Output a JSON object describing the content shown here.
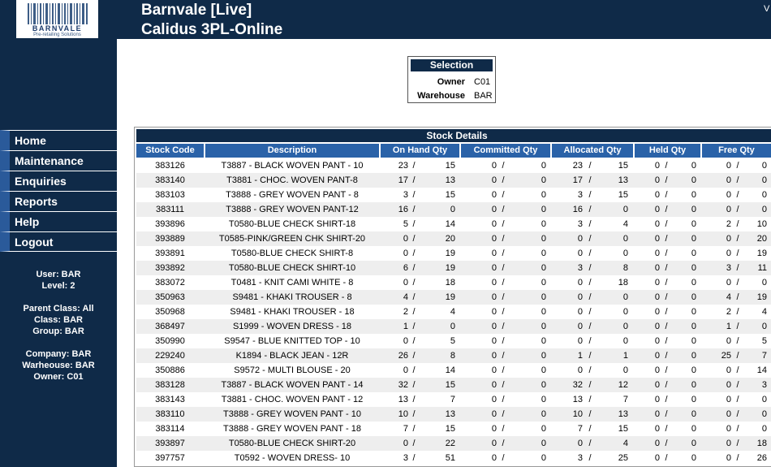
{
  "app": {
    "title_line1": "Barnvale [Live]",
    "title_line2": "Calidus 3PL-Online",
    "corner_text": "V",
    "logo_text": "BARNVALE",
    "logo_tagline": "Pre-retailing Solutions"
  },
  "nav": {
    "items": [
      "Home",
      "Maintenance",
      "Enquiries",
      "Reports",
      "Help",
      "Logout"
    ]
  },
  "user_info": {
    "user": "User: BAR",
    "level": "Level: 2",
    "parent_class": "Parent Class: All",
    "class": "Class: BAR",
    "group": "Group: BAR",
    "company": "Company: BAR",
    "warehouse": "Warheouse: BAR",
    "owner": "Owner: C01"
  },
  "selection": {
    "title": "Selection",
    "owner_label": "Owner",
    "owner_value": "C01",
    "warehouse_label": "Warehouse",
    "warehouse_value": "BAR"
  },
  "stock": {
    "title": "Stock Details",
    "columns": [
      "Stock Code",
      "Description",
      "On Hand Qty",
      "Committed Qty",
      "Allocated Qty",
      "Held Qty",
      "Free Qty"
    ],
    "rows": [
      {
        "code": "383126",
        "desc": "T3887 - BLACK WOVEN PANT - 10",
        "onhand": [
          "23",
          "15"
        ],
        "committed": [
          "0",
          "0"
        ],
        "allocated": [
          "23",
          "15"
        ],
        "held": [
          "0",
          "0"
        ],
        "free": [
          "0",
          "0"
        ]
      },
      {
        "code": "383140",
        "desc": "T3881 - CHOC. WOVEN PANT-8",
        "onhand": [
          "17",
          "13"
        ],
        "committed": [
          "0",
          "0"
        ],
        "allocated": [
          "17",
          "13"
        ],
        "held": [
          "0",
          "0"
        ],
        "free": [
          "0",
          "0"
        ]
      },
      {
        "code": "383103",
        "desc": "T3888 - GREY WOVEN PANT - 8",
        "onhand": [
          "3",
          "15"
        ],
        "committed": [
          "0",
          "0"
        ],
        "allocated": [
          "3",
          "15"
        ],
        "held": [
          "0",
          "0"
        ],
        "free": [
          "0",
          "0"
        ]
      },
      {
        "code": "383111",
        "desc": "T3888 - GREY WOVEN PANT-12",
        "onhand": [
          "16",
          "0"
        ],
        "committed": [
          "0",
          "0"
        ],
        "allocated": [
          "16",
          "0"
        ],
        "held": [
          "0",
          "0"
        ],
        "free": [
          "0",
          "0"
        ]
      },
      {
        "code": "393896",
        "desc": "T0580-BLUE CHECK SHIRT-18",
        "onhand": [
          "5",
          "14"
        ],
        "committed": [
          "0",
          "0"
        ],
        "allocated": [
          "3",
          "4"
        ],
        "held": [
          "0",
          "0"
        ],
        "free": [
          "2",
          "10"
        ]
      },
      {
        "code": "393889",
        "desc": "T0585-PINK/GREEN CHK SHIRT-20",
        "onhand": [
          "0",
          "20"
        ],
        "committed": [
          "0",
          "0"
        ],
        "allocated": [
          "0",
          "0"
        ],
        "held": [
          "0",
          "0"
        ],
        "free": [
          "0",
          "20"
        ]
      },
      {
        "code": "393891",
        "desc": "T0580-BLUE CHECK SHIRT-8",
        "onhand": [
          "0",
          "19"
        ],
        "committed": [
          "0",
          "0"
        ],
        "allocated": [
          "0",
          "0"
        ],
        "held": [
          "0",
          "0"
        ],
        "free": [
          "0",
          "19"
        ]
      },
      {
        "code": "393892",
        "desc": "T0580-BLUE CHECK SHIRT-10",
        "onhand": [
          "6",
          "19"
        ],
        "committed": [
          "0",
          "0"
        ],
        "allocated": [
          "3",
          "8"
        ],
        "held": [
          "0",
          "0"
        ],
        "free": [
          "3",
          "11"
        ]
      },
      {
        "code": "383072",
        "desc": "T0481 - KNIT CAMI WHITE - 8",
        "onhand": [
          "0",
          "18"
        ],
        "committed": [
          "0",
          "0"
        ],
        "allocated": [
          "0",
          "18"
        ],
        "held": [
          "0",
          "0"
        ],
        "free": [
          "0",
          "0"
        ]
      },
      {
        "code": "350963",
        "desc": "S9481 - KHAKI TROUSER - 8",
        "onhand": [
          "4",
          "19"
        ],
        "committed": [
          "0",
          "0"
        ],
        "allocated": [
          "0",
          "0"
        ],
        "held": [
          "0",
          "0"
        ],
        "free": [
          "4",
          "19"
        ]
      },
      {
        "code": "350968",
        "desc": "S9481 - KHAKI TROUSER - 18",
        "onhand": [
          "2",
          "4"
        ],
        "committed": [
          "0",
          "0"
        ],
        "allocated": [
          "0",
          "0"
        ],
        "held": [
          "0",
          "0"
        ],
        "free": [
          "2",
          "4"
        ]
      },
      {
        "code": "368497",
        "desc": "S1999 - WOVEN DRESS - 18",
        "onhand": [
          "1",
          "0"
        ],
        "committed": [
          "0",
          "0"
        ],
        "allocated": [
          "0",
          "0"
        ],
        "held": [
          "0",
          "0"
        ],
        "free": [
          "1",
          "0"
        ]
      },
      {
        "code": "350990",
        "desc": "S9547 - BLUE KNITTED TOP - 10",
        "onhand": [
          "0",
          "5"
        ],
        "committed": [
          "0",
          "0"
        ],
        "allocated": [
          "0",
          "0"
        ],
        "held": [
          "0",
          "0"
        ],
        "free": [
          "0",
          "5"
        ]
      },
      {
        "code": "229240",
        "desc": "K1894 - BLACK JEAN - 12R",
        "onhand": [
          "26",
          "8"
        ],
        "committed": [
          "0",
          "0"
        ],
        "allocated": [
          "1",
          "1"
        ],
        "held": [
          "0",
          "0"
        ],
        "free": [
          "25",
          "7"
        ]
      },
      {
        "code": "350886",
        "desc": "S9572 - MULTI BLOUSE - 20",
        "onhand": [
          "0",
          "14"
        ],
        "committed": [
          "0",
          "0"
        ],
        "allocated": [
          "0",
          "0"
        ],
        "held": [
          "0",
          "0"
        ],
        "free": [
          "0",
          "14"
        ]
      },
      {
        "code": "383128",
        "desc": "T3887 - BLACK WOVEN PANT - 14",
        "onhand": [
          "32",
          "15"
        ],
        "committed": [
          "0",
          "0"
        ],
        "allocated": [
          "32",
          "12"
        ],
        "held": [
          "0",
          "0"
        ],
        "free": [
          "0",
          "3"
        ]
      },
      {
        "code": "383143",
        "desc": "T3881 - CHOC. WOVEN PANT - 12",
        "onhand": [
          "13",
          "7"
        ],
        "committed": [
          "0",
          "0"
        ],
        "allocated": [
          "13",
          "7"
        ],
        "held": [
          "0",
          "0"
        ],
        "free": [
          "0",
          "0"
        ]
      },
      {
        "code": "383110",
        "desc": "T3888 - GREY WOVEN PANT - 10",
        "onhand": [
          "10",
          "13"
        ],
        "committed": [
          "0",
          "0"
        ],
        "allocated": [
          "10",
          "13"
        ],
        "held": [
          "0",
          "0"
        ],
        "free": [
          "0",
          "0"
        ]
      },
      {
        "code": "383114",
        "desc": "T3888 - GREY WOVEN PANT - 18",
        "onhand": [
          "7",
          "15"
        ],
        "committed": [
          "0",
          "0"
        ],
        "allocated": [
          "7",
          "15"
        ],
        "held": [
          "0",
          "0"
        ],
        "free": [
          "0",
          "0"
        ]
      },
      {
        "code": "393897",
        "desc": "T0580-BLUE CHECK SHIRT-20",
        "onhand": [
          "0",
          "22"
        ],
        "committed": [
          "0",
          "0"
        ],
        "allocated": [
          "0",
          "4"
        ],
        "held": [
          "0",
          "0"
        ],
        "free": [
          "0",
          "18"
        ]
      },
      {
        "code": "397757",
        "desc": "T0592 - WOVEN DRESS- 10",
        "onhand": [
          "3",
          "51"
        ],
        "committed": [
          "0",
          "0"
        ],
        "allocated": [
          "3",
          "25"
        ],
        "held": [
          "0",
          "0"
        ],
        "free": [
          "0",
          "26"
        ]
      }
    ]
  },
  "colors": {
    "navy": "#0f2a48",
    "header_blue": "#2a62a8",
    "nav_accent": "#2a5a9a"
  }
}
